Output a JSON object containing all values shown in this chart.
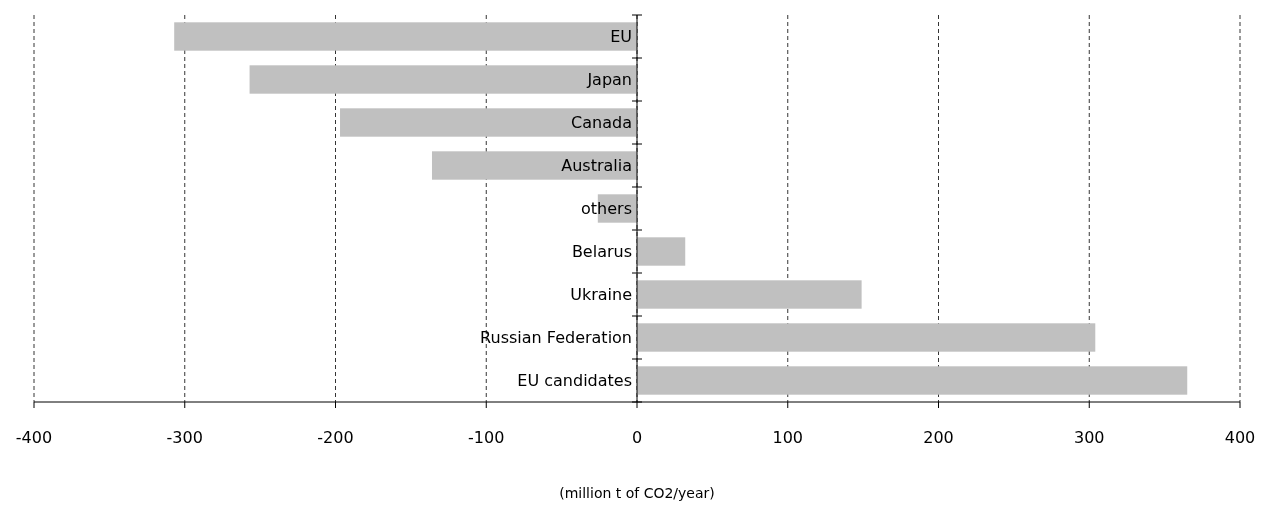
{
  "chart_data": {
    "type": "bar",
    "orientation": "horizontal",
    "xlabel": "(million t of CO2/year)",
    "categories": [
      "EU",
      "Japan",
      "Canada",
      "Australia",
      "others",
      "Belarus",
      "Ukraine",
      "Russian Federation",
      "EU candidates"
    ],
    "values": [
      -307,
      -257,
      -197,
      -136,
      -26,
      32,
      149,
      304,
      365
    ],
    "color": "#c0c0c0",
    "xlim": [
      -400,
      400
    ],
    "xticks": [
      -400,
      -300,
      -200,
      -100,
      0,
      100,
      200,
      300,
      400
    ],
    "grid": "x"
  }
}
